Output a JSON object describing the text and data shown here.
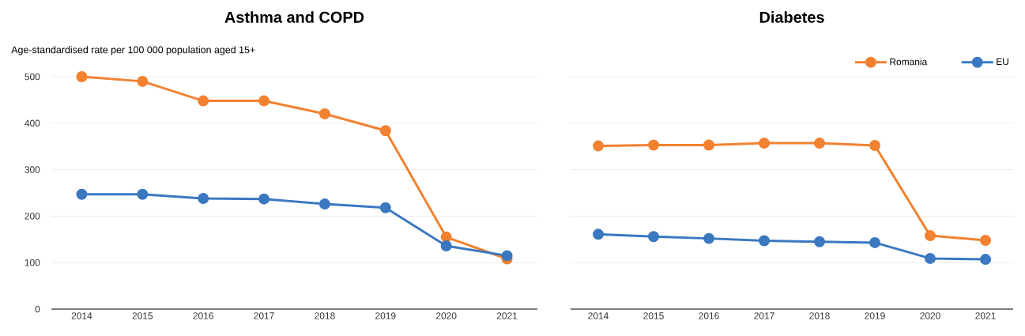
{
  "chart_data": [
    {
      "type": "line",
      "title": "Asthma and COPD",
      "subtitle": "Age-standardised rate per 100 000 population aged 15+",
      "categories": [
        "2014",
        "2015",
        "2016",
        "2017",
        "2018",
        "2019",
        "2020",
        "2021"
      ],
      "series": [
        {
          "color": "#f28130",
          "values": [
            500,
            490,
            448,
            448,
            420,
            384,
            155,
            108
          ]
        },
        {
          "color": "#3a78c0",
          "values": [
            247,
            247,
            238,
            237,
            226,
            218,
            136,
            115
          ]
        }
      ],
      "ylim": [
        0,
        500
      ],
      "yticks": [
        0,
        100,
        200,
        300,
        400,
        500
      ],
      "grid": "y",
      "marker": "circle",
      "line_style": "solid"
    },
    {
      "type": "line",
      "title": "Diabetes",
      "categories": [
        "2014",
        "2015",
        "2016",
        "2017",
        "2018",
        "2019",
        "2020",
        "2021"
      ],
      "series": [
        {
          "name": "Romania",
          "color": "#f28130",
          "values": [
            351,
            353,
            353,
            357,
            357,
            352,
            158,
            148
          ]
        },
        {
          "name": "EU",
          "color": "#3a78c0",
          "values": [
            161,
            156,
            152,
            147,
            145,
            143,
            109,
            107
          ]
        }
      ],
      "ylim": [
        0,
        500
      ],
      "yticks": [
        0,
        100,
        200,
        300,
        400,
        500
      ],
      "grid": "y",
      "marker": "circle",
      "line_style": "solid",
      "legend": "top right",
      "tick_labels": "x"
    }
  ]
}
